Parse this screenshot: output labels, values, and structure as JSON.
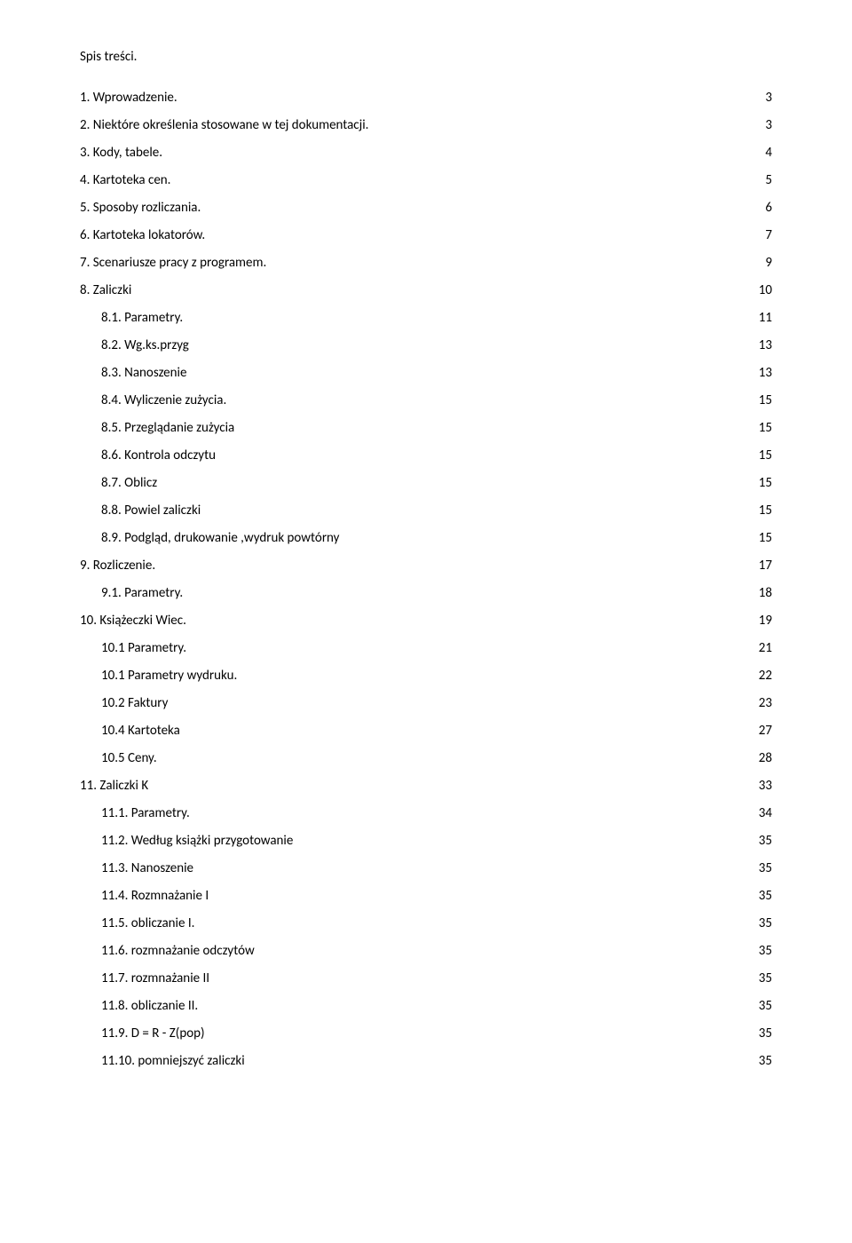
{
  "title": "Spis treści.",
  "entries": [
    {
      "label": "1. Wprowadzenie.",
      "page": "3",
      "indent": 0
    },
    {
      "label": "2. Niektóre określenia stosowane w tej dokumentacji.",
      "page": "3",
      "indent": 0
    },
    {
      "label": "3. Kody, tabele.",
      "page": "4",
      "indent": 0
    },
    {
      "label": "4. Kartoteka cen.",
      "page": "5",
      "indent": 0
    },
    {
      "label": "5. Sposoby rozliczania.",
      "page": "6",
      "indent": 0
    },
    {
      "label": "6. Kartoteka lokatorów.",
      "page": "7",
      "indent": 0
    },
    {
      "label": "7. Scenariusze pracy z programem.",
      "page": "9",
      "indent": 0
    },
    {
      "label": "8. Zaliczki",
      "page": "10",
      "indent": 0
    },
    {
      "label": "8.1. Parametry.",
      "page": "11",
      "indent": 1
    },
    {
      "label": "8.2. Wg.ks.przyg",
      "page": "13",
      "indent": 1
    },
    {
      "label": "8.3. Nanoszenie",
      "page": "13",
      "indent": 1
    },
    {
      "label": "8.4. Wyliczenie zużycia.",
      "page": "15",
      "indent": 1
    },
    {
      "label": "8.5. Przeglądanie zużycia",
      "page": "15",
      "indent": 1
    },
    {
      "label": "8.6. Kontrola odczytu",
      "page": "15",
      "indent": 1
    },
    {
      "label": "8.7. Oblicz",
      "page": "15",
      "indent": 1
    },
    {
      "label": "8.8. Powiel zaliczki",
      "page": "15",
      "indent": 1
    },
    {
      "label": "8.9. Podgląd, drukowanie ,wydruk powtórny",
      "page": "15",
      "indent": 1
    },
    {
      "label": "9. Rozliczenie.",
      "page": "17",
      "indent": 0
    },
    {
      "label": "9.1. Parametry.",
      "page": "18",
      "indent": 1
    },
    {
      "label": "10. Książeczki Wiec.",
      "page": "19",
      "indent": 0
    },
    {
      "label": "10.1 Parametry.",
      "page": "21",
      "indent": 1
    },
    {
      "label": "10.1 Parametry wydruku.",
      "page": "22",
      "indent": 1
    },
    {
      "label": "10.2 Faktury",
      "page": "23",
      "indent": 1
    },
    {
      "label": "10.4 Kartoteka",
      "page": "27",
      "indent": 1
    },
    {
      "label": "10.5 Ceny.",
      "page": "28",
      "indent": 1
    },
    {
      "label": "11. Zaliczki K",
      "page": "33",
      "indent": 0
    },
    {
      "label": "11.1. Parametry.",
      "page": "34",
      "indent": 1
    },
    {
      "label": "11.2. Według książki przygotowanie",
      "page": "35",
      "indent": 1
    },
    {
      "label": "11.3. Nanoszenie",
      "page": "35",
      "indent": 1
    },
    {
      "label": "11.4. Rozmnażanie  I",
      "page": "35",
      "indent": 1
    },
    {
      "label": "11.5.  obliczanie   I.",
      "page": "35",
      "indent": 1
    },
    {
      "label": "11.6. rozmnażanie  odczytów",
      "page": "35",
      "indent": 1
    },
    {
      "label": "11.7. rozmnażanie II",
      "page": "35",
      "indent": 1
    },
    {
      "label": "11.8. obliczanie  II.",
      "page": "35",
      "indent": 1
    },
    {
      "label": "11.9. D = R - Z(pop)",
      "page": "35",
      "indent": 1
    },
    {
      "label": "11.10.  pomniejszyć  zaliczki",
      "page": "35",
      "indent": 1
    }
  ]
}
